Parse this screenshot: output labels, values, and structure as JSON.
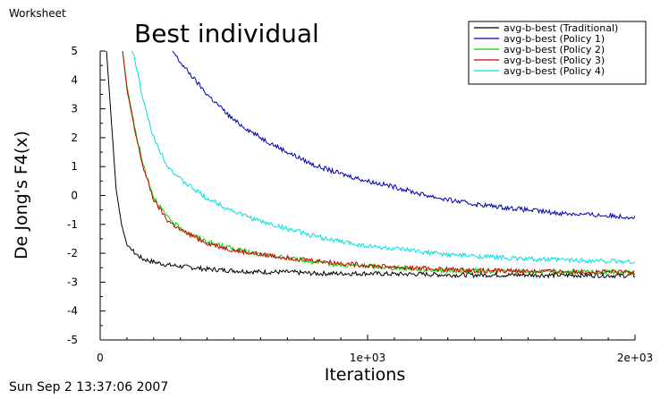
{
  "window_label": "Worksheet",
  "timestamp": "Sun Sep 2 13:37:06 2007",
  "chart_data": {
    "type": "line",
    "title": "Best individual",
    "xlabel": "Iterations",
    "ylabel": "De Jong's F4(x)",
    "xlim": [
      0,
      2000
    ],
    "ylim": [
      -5,
      5
    ],
    "x_ticks": [
      0,
      1000,
      2000
    ],
    "x_tick_labels": [
      "0",
      "1e+03",
      "2e+03"
    ],
    "y_ticks": [
      -5,
      -4,
      -3,
      -2,
      -1,
      0,
      1,
      2,
      3,
      4,
      5
    ],
    "y_tick_labels": [
      "-5",
      "-4",
      "-3",
      "-2",
      "-1",
      "0",
      "1",
      "2",
      "3",
      "4",
      "5"
    ],
    "grid": false,
    "legend_position": "top-right",
    "x": [
      20,
      40,
      60,
      80,
      100,
      130,
      160,
      200,
      250,
      300,
      400,
      500,
      600,
      700,
      800,
      900,
      1000,
      1100,
      1200,
      1300,
      1400,
      1500,
      1600,
      1700,
      1800,
      1900,
      2000
    ],
    "series": [
      {
        "name": "avg-b-best (Traditional)",
        "color": "#000000",
        "values": [
          5.5,
          2.8,
          0.2,
          -1.0,
          -1.7,
          -2.0,
          -2.2,
          -2.3,
          -2.4,
          -2.45,
          -2.55,
          -2.6,
          -2.65,
          -2.65,
          -2.7,
          -2.7,
          -2.7,
          -2.72,
          -2.72,
          -2.75,
          -2.75,
          -2.75,
          -2.75,
          -2.76,
          -2.76,
          -2.77,
          -2.77
        ]
      },
      {
        "name": "avg-b-best (Policy 1)",
        "color": "#0000b0",
        "values": [
          null,
          null,
          null,
          null,
          null,
          null,
          null,
          null,
          5.3,
          4.6,
          3.5,
          2.6,
          2.0,
          1.5,
          1.05,
          0.75,
          0.5,
          0.3,
          0.05,
          -0.15,
          -0.3,
          -0.4,
          -0.5,
          -0.6,
          -0.65,
          -0.7,
          -0.75
        ]
      },
      {
        "name": "avg-b-best (Policy 2)",
        "color": "#00d000",
        "values": [
          5.5,
          5.5,
          5.5,
          5.3,
          3.8,
          2.3,
          1.1,
          -0.05,
          -0.75,
          -1.15,
          -1.6,
          -1.85,
          -2.05,
          -2.15,
          -2.3,
          -2.4,
          -2.45,
          -2.5,
          -2.55,
          -2.6,
          -2.6,
          -2.62,
          -2.63,
          -2.64,
          -2.65,
          -2.65,
          -2.66
        ]
      },
      {
        "name": "avg-b-best (Policy 3)",
        "color": "#d00000",
        "values": [
          5.5,
          5.5,
          5.5,
          5.3,
          3.7,
          2.2,
          1.0,
          -0.15,
          -0.85,
          -1.2,
          -1.65,
          -1.9,
          -2.05,
          -2.15,
          -2.25,
          -2.35,
          -2.42,
          -2.48,
          -2.52,
          -2.56,
          -2.6,
          -2.6,
          -2.62,
          -2.63,
          -2.64,
          -2.65,
          -2.66
        ]
      },
      {
        "name": "avg-b-best (Policy 4)",
        "color": "#00e0e0",
        "values": [
          5.5,
          5.5,
          5.5,
          5.5,
          5.5,
          4.7,
          3.3,
          2.0,
          1.05,
          0.55,
          -0.1,
          -0.55,
          -0.9,
          -1.15,
          -1.4,
          -1.6,
          -1.75,
          -1.85,
          -1.95,
          -2.05,
          -2.1,
          -2.15,
          -2.2,
          -2.22,
          -2.25,
          -2.27,
          -2.3
        ]
      }
    ]
  }
}
